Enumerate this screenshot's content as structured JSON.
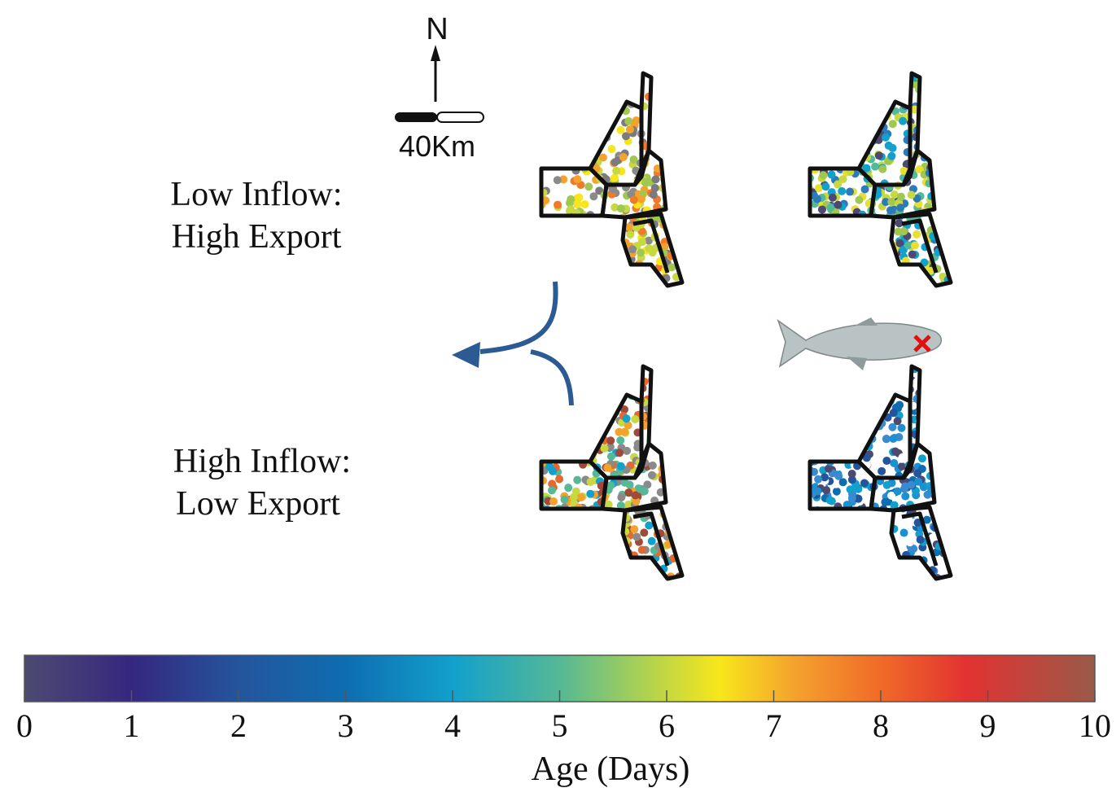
{
  "compass": {
    "north": "N",
    "scale": "40Km"
  },
  "rows": [
    {
      "line1": "Low Inflow:",
      "line2": "High Export"
    },
    {
      "line1": "High Inflow:",
      "line2": "Low Export"
    }
  ],
  "colorbar": {
    "label": "Age (Days)",
    "range": [
      0,
      10
    ],
    "ticks": [
      0,
      1,
      2,
      3,
      4,
      5,
      6,
      7,
      8,
      9,
      10
    ]
  }
}
